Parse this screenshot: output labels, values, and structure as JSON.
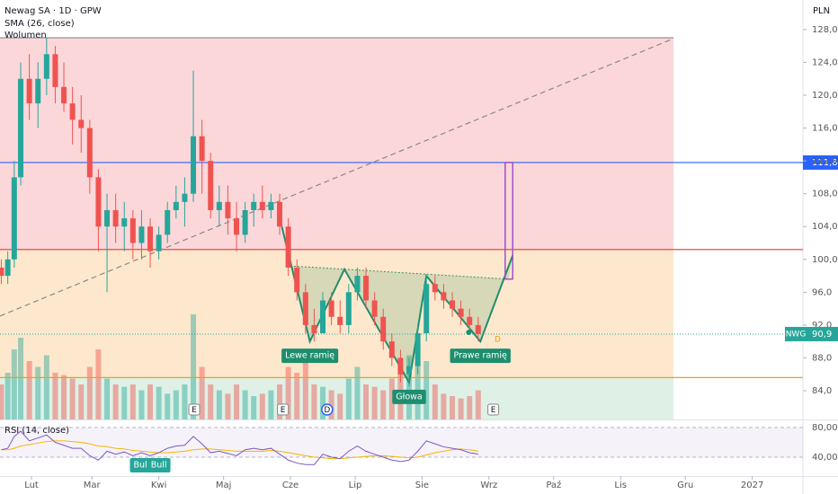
{
  "chart_data": {
    "type": "candlestick",
    "title": "Newag SA · 1D · GPW",
    "indicators": [
      "SMA (26, close)",
      "Wolumen"
    ],
    "currency": "PLN",
    "xlim": [
      16.4,
      388.5
    ],
    "xticks": [
      {
        "value": 31,
        "label": "Lut"
      },
      {
        "value": 59,
        "label": "Mar"
      },
      {
        "value": 90,
        "label": "Kwi"
      },
      {
        "value": 120,
        "label": "Maj"
      },
      {
        "value": 151,
        "label": "Cze"
      },
      {
        "value": 181,
        "label": "Lip"
      },
      {
        "value": 212,
        "label": "Sie"
      },
      {
        "value": 243,
        "label": "Wrz"
      },
      {
        "value": 273,
        "label": "Paź"
      },
      {
        "value": 304,
        "label": "Lis"
      },
      {
        "value": 334,
        "label": "Gru"
      },
      {
        "value": 365,
        "label": "2027"
      }
    ],
    "ylim": [
      80.5,
      131.6
    ],
    "yticks": [
      {
        "value": 84,
        "label": "84,0"
      },
      {
        "value": 88,
        "label": "88,0"
      },
      {
        "value": 92,
        "label": "92,0"
      },
      {
        "value": 96,
        "label": "96,0"
      },
      {
        "value": 100,
        "label": "100,0"
      },
      {
        "value": 104,
        "label": "104,0"
      },
      {
        "value": 108,
        "label": "108,0"
      },
      {
        "value": 112,
        "label": "112,0"
      },
      {
        "value": 116,
        "label": "116,0"
      },
      {
        "value": 120,
        "label": "120,0"
      },
      {
        "value": 124,
        "label": "124,0"
      },
      {
        "value": 128,
        "label": "128,0"
      }
    ],
    "candles": {
      "x": [
        17,
        20,
        23,
        26,
        30,
        34,
        38,
        42,
        46,
        50,
        54,
        58,
        62,
        66,
        70,
        74,
        78,
        82,
        86,
        90,
        94,
        98,
        102,
        106,
        110,
        114,
        118,
        122,
        126,
        130,
        134,
        138,
        142,
        146,
        150,
        154,
        158,
        162,
        166,
        170,
        174,
        178,
        182,
        186,
        190,
        194,
        198,
        202,
        206,
        210,
        214,
        218,
        222,
        226,
        230,
        234,
        238
      ],
      "open": [
        99,
        98,
        100,
        110,
        122,
        119,
        122,
        125,
        121,
        119,
        117,
        116,
        110,
        104,
        106,
        104,
        105,
        102,
        104,
        101,
        103,
        106,
        107,
        108,
        115,
        112,
        106,
        107,
        105,
        103,
        106,
        107,
        106,
        107,
        104,
        99,
        96,
        92,
        91,
        95,
        93,
        92,
        96,
        98,
        95,
        93,
        90,
        88,
        86,
        87,
        91,
        97,
        96,
        95,
        94,
        93,
        92
      ],
      "high": [
        100,
        101,
        112,
        124,
        125,
        124,
        127,
        126,
        124,
        121,
        120,
        117,
        111,
        108,
        108,
        107,
        106,
        106,
        105,
        104,
        107,
        109,
        110,
        123,
        117,
        113,
        109,
        109,
        107,
        107,
        108,
        109,
        108,
        108,
        105,
        100,
        97,
        94,
        96,
        96,
        95,
        97,
        99,
        99,
        96,
        94,
        91,
        89,
        88,
        92,
        98,
        98,
        97,
        96,
        95,
        94,
        93
      ],
      "low": [
        97,
        97,
        99,
        109,
        117,
        116,
        120,
        119,
        118,
        114,
        113,
        108,
        101,
        96,
        102,
        101,
        100,
        100,
        99,
        100,
        102,
        105,
        104,
        107,
        108,
        105,
        104,
        103,
        101,
        102,
        104,
        105,
        105,
        103,
        98,
        95,
        91,
        90,
        91,
        92,
        91,
        91,
        95,
        94,
        92,
        89,
        87,
        85,
        84.5,
        86,
        90,
        95,
        94,
        93,
        92,
        91,
        90
      ],
      "close": [
        98,
        100,
        110,
        122,
        119,
        122,
        125,
        121,
        119,
        117,
        116,
        110,
        104,
        106,
        104,
        105,
        102,
        104,
        101,
        103,
        106,
        107,
        108,
        115,
        112,
        106,
        107,
        105,
        103,
        106,
        107,
        106,
        107,
        104,
        99,
        96,
        92,
        91,
        95,
        93,
        92,
        96,
        98,
        95,
        93,
        90,
        88,
        86,
        87,
        91,
        97,
        96,
        95,
        94,
        93,
        92,
        90.9
      ],
      "volume": [
        30,
        40,
        60,
        70,
        50,
        45,
        55,
        40,
        38,
        35,
        30,
        45,
        60,
        35,
        30,
        28,
        30,
        25,
        30,
        28,
        22,
        25,
        30,
        90,
        45,
        30,
        25,
        22,
        30,
        25,
        20,
        22,
        25,
        30,
        45,
        40,
        50,
        30,
        28,
        25,
        22,
        35,
        45,
        30,
        28,
        25,
        35,
        40,
        55,
        50,
        50,
        30,
        22,
        20,
        18,
        20,
        25
      ]
    },
    "colors": {
      "up": "#26a69a",
      "down": "#ef5350"
    },
    "zones": [
      {
        "top": 127,
        "bottom": 101.2,
        "color": "#fbd7da",
        "end": 328.5
      },
      {
        "top": 101.2,
        "bottom": 85.6,
        "color": "#fde8cd",
        "end": 328.5
      },
      {
        "top": 85.6,
        "bottom": 80.5,
        "color": "#dff1e6",
        "end": 328.5
      }
    ],
    "levels": [
      {
        "value": 111.8,
        "color": "#2962ff",
        "label": "111,8"
      },
      {
        "value": 101.2,
        "color": "#e53935"
      },
      {
        "value": 85.6,
        "color": "#f59d0f"
      },
      {
        "value": 127,
        "color": "#888888",
        "end": 328.5
      }
    ],
    "trendline": {
      "x": [
        16.4,
        328.5
      ],
      "y": [
        93.1,
        126.9
      ]
    },
    "pattern": {
      "x": [
        147,
        160,
        176,
        206,
        214,
        239,
        254
      ],
      "y": [
        104,
        90,
        98.8,
        85,
        98,
        90,
        100.5
      ],
      "labels": [
        null,
        "Lewe ramię",
        null,
        "Głowa",
        null,
        "Prawe ramię",
        null
      ],
      "neckline": {
        "x": [
          151,
          252
        ],
        "y": [
          99.2,
          97.6
        ]
      }
    },
    "target_box": {
      "x": [
        250.5,
        254
      ],
      "y": [
        111.8,
        97.6
      ]
    },
    "last": {
      "name": "NWG",
      "value": 90.9,
      "label": "90,9"
    },
    "events": [
      {
        "x": 106.4,
        "label": "E"
      },
      {
        "x": 147.5,
        "label": "E"
      },
      {
        "x": 168,
        "label": "D"
      },
      {
        "x": 245,
        "label": "E"
      }
    ],
    "dividend_marker": {
      "x": 247,
      "label": "D"
    },
    "rsi": {
      "title": "RSI (14, close)",
      "ylim": [
        14.5,
        89.7
      ],
      "yticks": [
        {
          "value": 80,
          "label": "80,00"
        },
        {
          "value": 40,
          "label": "40,00"
        }
      ],
      "values": [
        50,
        52,
        68,
        75,
        62,
        66,
        70,
        60,
        56,
        52,
        52,
        42,
        36,
        48,
        44,
        47,
        42,
        46,
        42,
        46,
        52,
        55,
        56,
        68,
        58,
        46,
        48,
        45,
        42,
        50,
        52,
        50,
        52,
        44,
        36,
        32,
        30,
        30,
        44,
        40,
        38,
        48,
        55,
        48,
        44,
        40,
        36,
        34,
        36,
        48,
        62,
        58,
        54,
        52,
        50,
        46,
        44
      ],
      "ma": [
        50,
        50,
        52,
        55,
        57,
        59,
        61,
        62,
        62,
        61,
        60,
        58,
        55,
        54,
        52,
        51,
        49,
        48,
        47,
        46,
        46,
        47,
        48,
        50,
        51,
        51,
        50,
        49,
        48,
        48,
        48,
        48,
        49,
        48,
        46,
        44,
        42,
        40,
        39,
        38,
        38,
        39,
        40,
        41,
        42,
        42,
        41,
        40,
        39,
        40,
        43,
        46,
        48,
        50,
        51,
        50,
        48
      ],
      "signals": [
        {
          "x": 82,
          "label": "Bull"
        },
        {
          "x": 90,
          "label": "Bull"
        }
      ]
    }
  }
}
